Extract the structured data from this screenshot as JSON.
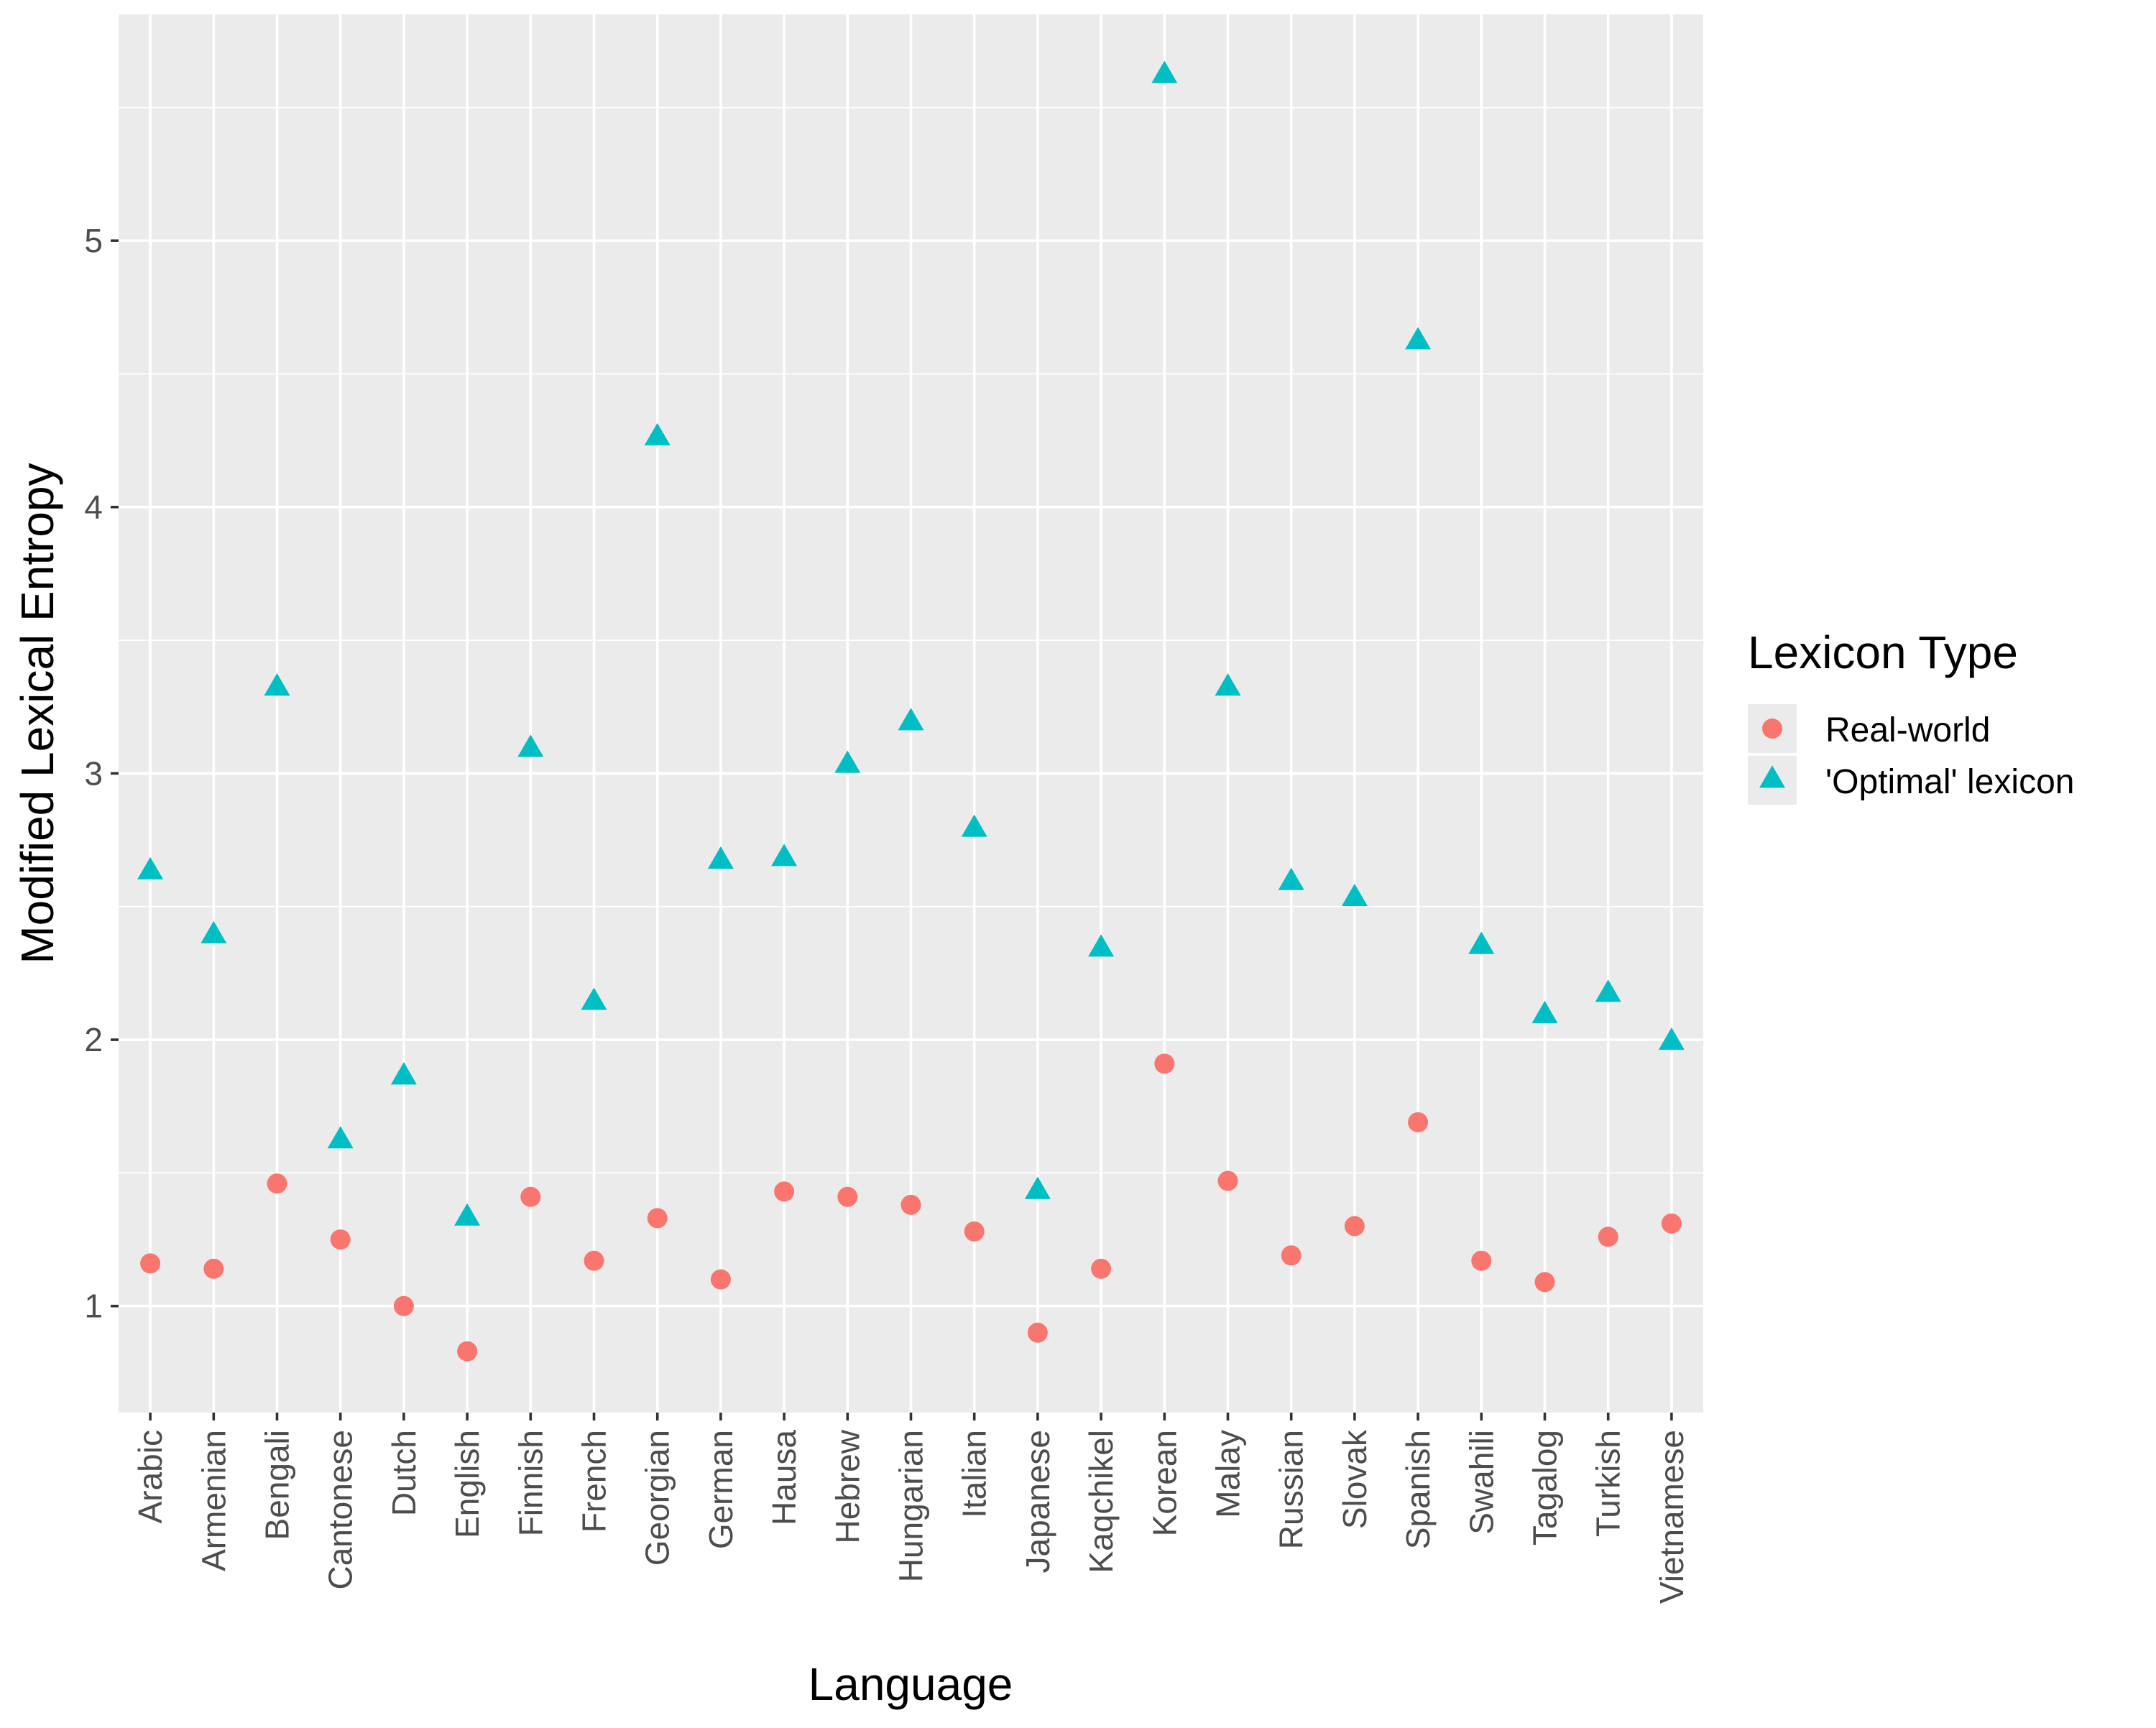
{
  "chart_data": {
    "type": "scatter",
    "xlabel": "Language",
    "ylabel": "Modified Lexical Entropy",
    "categories": [
      "Arabic",
      "Armenian",
      "Bengali",
      "Cantonese",
      "Dutch",
      "English",
      "Finnish",
      "French",
      "Georgian",
      "German",
      "Hausa",
      "Hebrew",
      "Hungarian",
      "Italian",
      "Japanese",
      "Kaqchikel",
      "Korean",
      "Malay",
      "Russian",
      "Slovak",
      "Spanish",
      "Swahili",
      "Tagalog",
      "Turkish",
      "Vietnamese"
    ],
    "yticks": [
      "1",
      "2",
      "3",
      "4",
      "5"
    ],
    "ylim": [
      0.6,
      5.85
    ],
    "grid": true,
    "legend": {
      "title": "Lexicon Type",
      "position": "right"
    },
    "series": [
      {
        "name": "Real-world",
        "marker": "circle",
        "color": "#F8766D",
        "values": [
          1.16,
          1.14,
          1.46,
          1.25,
          1.0,
          0.83,
          1.41,
          1.17,
          1.33,
          1.1,
          1.43,
          1.41,
          1.38,
          1.28,
          0.9,
          1.14,
          1.91,
          1.47,
          1.19,
          1.3,
          1.69,
          1.17,
          1.09,
          1.26,
          1.31
        ]
      },
      {
        "name": "'Optimal' lexicon",
        "marker": "triangle",
        "color": "#00BFC4",
        "values": [
          2.63,
          2.39,
          3.32,
          1.62,
          1.86,
          1.33,
          3.09,
          2.14,
          4.26,
          2.67,
          2.68,
          3.03,
          3.19,
          2.79,
          1.43,
          2.34,
          5.62,
          3.32,
          2.59,
          2.53,
          4.62,
          2.35,
          2.09,
          2.17,
          1.99
        ]
      }
    ]
  }
}
